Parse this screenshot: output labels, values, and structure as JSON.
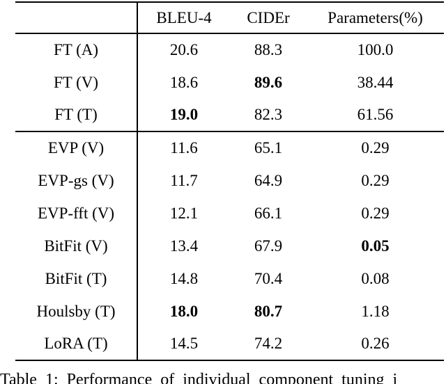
{
  "table": {
    "corner_label": "",
    "columns": [
      "BLEU-4",
      "CIDEr",
      "Parameters(%)"
    ],
    "groups": [
      {
        "rows": [
          {
            "label": "FT (A)",
            "cells": [
              {
                "text": "20.6",
                "bold": false
              },
              {
                "text": "88.3",
                "bold": false
              },
              {
                "text": "100.0",
                "bold": false
              }
            ]
          },
          {
            "label": "FT (V)",
            "cells": [
              {
                "text": "18.6",
                "bold": false
              },
              {
                "text": "89.6",
                "bold": true
              },
              {
                "text": "38.44",
                "bold": false
              }
            ]
          },
          {
            "label": "FT (T)",
            "cells": [
              {
                "text": "19.0",
                "bold": true
              },
              {
                "text": "82.3",
                "bold": false
              },
              {
                "text": "61.56",
                "bold": false
              }
            ]
          }
        ]
      },
      {
        "rows": [
          {
            "label": "EVP (V)",
            "cells": [
              {
                "text": "11.6",
                "bold": false
              },
              {
                "text": "65.1",
                "bold": false
              },
              {
                "text": "0.29",
                "bold": false
              }
            ]
          },
          {
            "label": "EVP-gs (V)",
            "cells": [
              {
                "text": "11.7",
                "bold": false
              },
              {
                "text": "64.9",
                "bold": false
              },
              {
                "text": "0.29",
                "bold": false
              }
            ]
          },
          {
            "label": "EVP-fft (V)",
            "cells": [
              {
                "text": "12.1",
                "bold": false
              },
              {
                "text": "66.1",
                "bold": false
              },
              {
                "text": "0.29",
                "bold": false
              }
            ]
          },
          {
            "label": "BitFit (V)",
            "cells": [
              {
                "text": "13.4",
                "bold": false
              },
              {
                "text": "67.9",
                "bold": false
              },
              {
                "text": "0.05",
                "bold": true
              }
            ]
          },
          {
            "label": "BitFit (T)",
            "cells": [
              {
                "text": "14.8",
                "bold": false
              },
              {
                "text": "70.4",
                "bold": false
              },
              {
                "text": "0.08",
                "bold": false
              }
            ]
          },
          {
            "label": "Houlsby (T)",
            "cells": [
              {
                "text": "18.0",
                "bold": true
              },
              {
                "text": "80.7",
                "bold": true
              },
              {
                "text": "1.18",
                "bold": false
              }
            ]
          },
          {
            "label": "LoRA (T)",
            "cells": [
              {
                "text": "14.5",
                "bold": false
              },
              {
                "text": "74.2",
                "bold": false
              },
              {
                "text": "0.26",
                "bold": false
              }
            ]
          }
        ]
      }
    ]
  },
  "caption": {
    "text": "Table 1: Performance of individual component tuning i"
  }
}
